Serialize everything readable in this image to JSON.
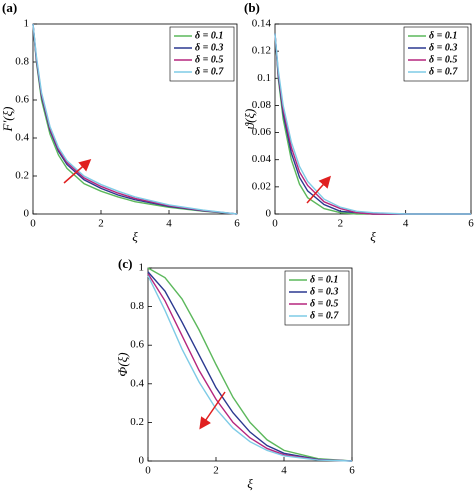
{
  "chart_data": [
    {
      "type": "line",
      "panel_label": "(a)",
      "xlabel": "ξ",
      "ylabel": "F′(ξ)",
      "x": [
        0,
        0.1,
        0.25,
        0.5,
        0.75,
        1,
        1.5,
        2,
        2.5,
        3,
        4,
        5,
        6
      ],
      "xlim": [
        0,
        6
      ],
      "xticks": [
        0,
        2,
        4,
        6
      ],
      "ylim": [
        0,
        1
      ],
      "yticks": [
        0,
        0.2,
        0.4,
        0.6,
        0.8,
        1
      ],
      "legend": "upper right",
      "series": [
        {
          "name": "δ = 0.1",
          "color": "#5cb85c",
          "values": [
            1,
            0.8,
            0.6,
            0.42,
            0.31,
            0.24,
            0.16,
            0.12,
            0.09,
            0.065,
            0.035,
            0.015,
            0
          ]
        },
        {
          "name": "δ = 0.3",
          "color": "#2b3990",
          "values": [
            1,
            0.81,
            0.62,
            0.44,
            0.33,
            0.26,
            0.18,
            0.135,
            0.1,
            0.075,
            0.04,
            0.017,
            0
          ]
        },
        {
          "name": "δ = 0.5",
          "color": "#b5267e",
          "values": [
            1,
            0.82,
            0.63,
            0.45,
            0.34,
            0.27,
            0.19,
            0.145,
            0.11,
            0.082,
            0.044,
            0.019,
            0
          ]
        },
        {
          "name": "δ = 0.7",
          "color": "#7ecbe6",
          "values": [
            1,
            0.83,
            0.64,
            0.46,
            0.35,
            0.28,
            0.2,
            0.155,
            0.12,
            0.09,
            0.048,
            0.021,
            0
          ]
        }
      ]
    },
    {
      "type": "line",
      "panel_label": "(b)",
      "xlabel": "ξ",
      "ylabel": "ϑ(ξ)",
      "x": [
        0,
        0.1,
        0.25,
        0.5,
        0.75,
        1,
        1.5,
        2,
        2.5,
        3,
        4,
        5,
        6
      ],
      "xlim": [
        0,
        6
      ],
      "xticks": [
        0,
        2,
        4,
        6
      ],
      "ylim": [
        0,
        0.14
      ],
      "yticks": [
        0,
        0.02,
        0.04,
        0.06,
        0.08,
        0.1,
        0.12,
        0.14
      ],
      "legend": "upper right",
      "series": [
        {
          "name": "δ = 0.1",
          "color": "#5cb85c",
          "values": [
            0.133,
            0.1,
            0.07,
            0.04,
            0.022,
            0.012,
            0.004,
            0.001,
            0,
            0,
            0,
            0,
            0
          ]
        },
        {
          "name": "δ = 0.3",
          "color": "#2b3990",
          "values": [
            0.133,
            0.102,
            0.074,
            0.045,
            0.027,
            0.017,
            0.007,
            0.002,
            0.001,
            0,
            0,
            0,
            0
          ]
        },
        {
          "name": "δ = 0.5",
          "color": "#b5267e",
          "values": [
            0.133,
            0.104,
            0.077,
            0.049,
            0.031,
            0.021,
            0.009,
            0.004,
            0.001,
            0,
            0,
            0,
            0
          ]
        },
        {
          "name": "δ = 0.7",
          "color": "#7ecbe6",
          "values": [
            0.133,
            0.106,
            0.08,
            0.053,
            0.035,
            0.024,
            0.011,
            0.005,
            0.002,
            0.001,
            0,
            0,
            0
          ]
        }
      ]
    },
    {
      "type": "line",
      "panel_label": "(c)",
      "xlabel": "ξ",
      "ylabel": "Φ(ξ)",
      "x": [
        0,
        0.5,
        1,
        1.5,
        2,
        2.5,
        3,
        3.5,
        4,
        5,
        6
      ],
      "xlim": [
        0,
        6
      ],
      "xticks": [
        0,
        2,
        4,
        6
      ],
      "ylim": [
        0,
        1
      ],
      "yticks": [
        0,
        0.2,
        0.4,
        0.6,
        0.8,
        1
      ],
      "legend": "upper right",
      "series": [
        {
          "name": "δ = 0.1",
          "color": "#5cb85c",
          "values": [
            1,
            0.95,
            0.84,
            0.68,
            0.5,
            0.33,
            0.2,
            0.11,
            0.055,
            0.012,
            0
          ]
        },
        {
          "name": "δ = 0.3",
          "color": "#2b3990",
          "values": [
            0.98,
            0.88,
            0.72,
            0.55,
            0.38,
            0.25,
            0.15,
            0.08,
            0.04,
            0.008,
            0
          ]
        },
        {
          "name": "δ = 0.5",
          "color": "#b5267e",
          "values": [
            0.97,
            0.83,
            0.65,
            0.47,
            0.32,
            0.2,
            0.12,
            0.065,
            0.032,
            0.006,
            0
          ]
        },
        {
          "name": "δ = 0.7",
          "color": "#7ecbe6",
          "values": [
            0.96,
            0.78,
            0.58,
            0.41,
            0.27,
            0.17,
            0.1,
            0.055,
            0.027,
            0.005,
            0
          ]
        }
      ]
    }
  ]
}
